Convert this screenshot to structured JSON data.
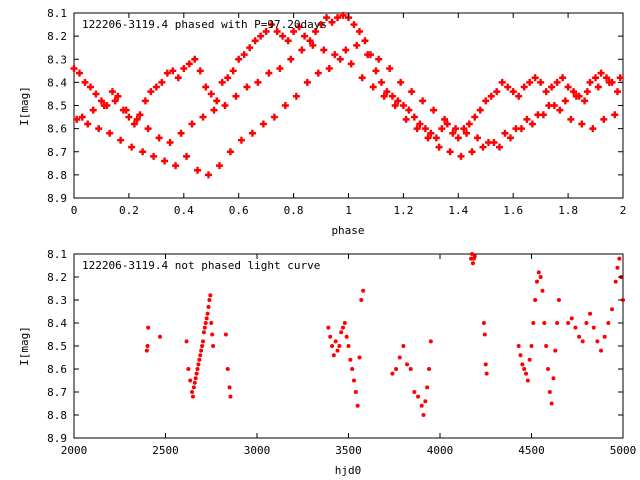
{
  "colors": {
    "points": "#ff0000",
    "axes": "#000000",
    "background": "#ffffff"
  },
  "chart_data": [
    {
      "type": "scatter",
      "title": "122206-3119.4 phased with P=97.20days",
      "xlabel": "phase",
      "ylabel": "I[mag]",
      "xlim": [
        0,
        2
      ],
      "ylim": [
        8.9,
        8.1
      ],
      "y_inverted": true,
      "grid": false,
      "legend": "none",
      "x_ticks": [
        "0",
        "0.2",
        "0.4",
        "0.6",
        "0.8",
        "1",
        "1.2",
        "1.4",
        "1.6",
        "1.8",
        "2"
      ],
      "y_ticks": [
        "8.1",
        "8.2",
        "8.3",
        "8.4",
        "8.5",
        "8.6",
        "8.7",
        "8.8",
        "8.9"
      ],
      "series": [
        {
          "marker": "star",
          "x": [
            0.0,
            0.02,
            0.04,
            0.06,
            0.08,
            0.1,
            0.12,
            0.14,
            0.16,
            0.18,
            0.2,
            0.22,
            0.24,
            0.26,
            0.28,
            0.3,
            0.32,
            0.34,
            0.36,
            0.38,
            0.4,
            0.42,
            0.44,
            0.46,
            0.48,
            0.5,
            0.52,
            0.54,
            0.56,
            0.58,
            0.6,
            0.62,
            0.64,
            0.66,
            0.68,
            0.7,
            0.72,
            0.74,
            0.76,
            0.78,
            0.8,
            0.82,
            0.84,
            0.86,
            0.88,
            0.9,
            0.92,
            0.94,
            0.96,
            0.98,
            1.0,
            1.02,
            1.04,
            1.06,
            1.08,
            1.1,
            1.12,
            1.14,
            1.16,
            1.18,
            1.2,
            1.22,
            1.24,
            1.26,
            1.28,
            1.3,
            1.32,
            1.34,
            1.36,
            1.38,
            1.4,
            1.42,
            1.44,
            1.46,
            1.48,
            1.5,
            1.52,
            1.54,
            1.56,
            1.58,
            1.6,
            1.62,
            1.64,
            1.66,
            1.68,
            1.7,
            1.72,
            1.74,
            1.76,
            1.78,
            1.8,
            1.82,
            1.84,
            1.86,
            1.88,
            1.9,
            1.92,
            1.94,
            1.96,
            1.98,
            0.01,
            0.05,
            0.09,
            0.13,
            0.17,
            0.21,
            0.25,
            0.29,
            0.33,
            0.37,
            0.41,
            0.45,
            0.49,
            0.53,
            0.57,
            0.61,
            0.65,
            0.69,
            0.73,
            0.77,
            0.81,
            0.85,
            0.89,
            0.93,
            0.97,
            1.01,
            1.05,
            1.09,
            1.13,
            1.17,
            1.21,
            1.25,
            1.29,
            1.33,
            1.37,
            1.41,
            1.45,
            1.49,
            1.53,
            1.57,
            1.61,
            1.65,
            1.69,
            1.73,
            1.77,
            1.81,
            1.85,
            1.89,
            1.93,
            1.97,
            0.03,
            0.07,
            0.11,
            0.15,
            0.19,
            0.23,
            0.27,
            0.31,
            0.35,
            0.39,
            0.43,
            0.47,
            0.51,
            0.55,
            0.59,
            0.63,
            0.67,
            0.71,
            0.75,
            0.79,
            0.83,
            0.87,
            0.91,
            0.95,
            0.99,
            1.03,
            1.07,
            1.11,
            1.15,
            1.19,
            1.23,
            1.27,
            1.31,
            1.35,
            1.39,
            1.43,
            1.47,
            1.51,
            1.55,
            1.59,
            1.63,
            1.67,
            1.71,
            1.75,
            1.79,
            1.83,
            1.87,
            1.91,
            1.95,
            1.99
          ],
          "y": [
            8.34,
            8.36,
            8.4,
            8.42,
            8.45,
            8.48,
            8.5,
            8.44,
            8.46,
            8.52,
            8.55,
            8.58,
            8.54,
            8.48,
            8.44,
            8.42,
            8.4,
            8.36,
            8.35,
            8.38,
            8.34,
            8.32,
            8.3,
            8.35,
            8.42,
            8.45,
            8.48,
            8.4,
            8.38,
            8.35,
            8.3,
            8.28,
            8.25,
            8.22,
            8.2,
            8.18,
            8.15,
            8.18,
            8.2,
            8.22,
            8.18,
            8.16,
            8.2,
            8.22,
            8.18,
            8.15,
            8.12,
            8.14,
            8.12,
            8.11,
            8.12,
            8.15,
            8.18,
            8.22,
            8.28,
            8.35,
            8.4,
            8.44,
            8.46,
            8.48,
            8.5,
            8.52,
            8.55,
            8.58,
            8.6,
            8.62,
            8.64,
            8.6,
            8.58,
            8.62,
            8.64,
            8.6,
            8.58,
            8.55,
            8.52,
            8.48,
            8.46,
            8.44,
            8.4,
            8.42,
            8.44,
            8.46,
            8.42,
            8.4,
            8.38,
            8.4,
            8.44,
            8.42,
            8.4,
            8.38,
            8.42,
            8.44,
            8.46,
            8.48,
            8.4,
            8.38,
            8.36,
            8.38,
            8.4,
            8.44,
            8.56,
            8.58,
            8.6,
            8.62,
            8.65,
            8.68,
            8.7,
            8.72,
            8.74,
            8.76,
            8.72,
            8.78,
            8.8,
            8.76,
            8.7,
            8.65,
            8.62,
            8.58,
            8.55,
            8.5,
            8.46,
            8.4,
            8.36,
            8.34,
            8.3,
            8.32,
            8.38,
            8.42,
            8.46,
            8.5,
            8.56,
            8.6,
            8.64,
            8.68,
            8.7,
            8.72,
            8.7,
            8.68,
            8.66,
            8.62,
            8.6,
            8.56,
            8.54,
            8.5,
            8.52,
            8.56,
            8.58,
            8.6,
            8.56,
            8.54,
            8.55,
            8.52,
            8.5,
            8.48,
            8.52,
            8.56,
            8.6,
            8.64,
            8.66,
            8.62,
            8.58,
            8.55,
            8.52,
            8.5,
            8.46,
            8.42,
            8.4,
            8.36,
            8.34,
            8.3,
            8.26,
            8.24,
            8.26,
            8.28,
            8.26,
            8.24,
            8.28,
            8.3,
            8.34,
            8.4,
            8.44,
            8.48,
            8.52,
            8.56,
            8.6,
            8.62,
            8.64,
            8.66,
            8.68,
            8.64,
            8.6,
            8.58,
            8.54,
            8.5,
            8.48,
            8.46,
            8.44,
            8.42,
            8.4,
            8.38
          ]
        }
      ]
    },
    {
      "type": "scatter",
      "title": "122206-3119.4 not phased light curve",
      "xlabel": "hjd0",
      "ylabel": "I[mag]",
      "xlim": [
        2000,
        5000
      ],
      "ylim": [
        8.9,
        8.1
      ],
      "y_inverted": true,
      "grid": false,
      "legend": "none",
      "x_ticks": [
        "2000",
        "2500",
        "3000",
        "3500",
        "4000",
        "4500",
        "5000"
      ],
      "y_ticks": [
        "8.1",
        "8.2",
        "8.3",
        "8.4",
        "8.5",
        "8.6",
        "8.7",
        "8.8",
        "8.9"
      ],
      "series": [
        {
          "marker": "dot",
          "x": [
            2398,
            2402,
            2405,
            2470,
            2615,
            2625,
            2635,
            2645,
            2650,
            2655,
            2660,
            2665,
            2670,
            2675,
            2680,
            2685,
            2690,
            2695,
            2700,
            2705,
            2710,
            2715,
            2720,
            2725,
            2730,
            2735,
            2740,
            2745,
            2750,
            2755,
            2760,
            2830,
            2840,
            2850,
            2855,
            3390,
            3400,
            3410,
            3420,
            3430,
            3440,
            3450,
            3460,
            3470,
            3480,
            3490,
            3500,
            3510,
            3520,
            3530,
            3540,
            3550,
            3560,
            3570,
            3580,
            3740,
            3760,
            3780,
            3800,
            3820,
            3840,
            3860,
            3880,
            3900,
            3910,
            3920,
            3930,
            3940,
            3950,
            4170,
            4175,
            4180,
            4185,
            4190,
            4240,
            4245,
            4250,
            4255,
            4430,
            4440,
            4450,
            4460,
            4470,
            4480,
            4490,
            4500,
            4510,
            4520,
            4530,
            4540,
            4550,
            4560,
            4570,
            4580,
            4590,
            4600,
            4610,
            4620,
            4630,
            4640,
            4650,
            4700,
            4720,
            4740,
            4760,
            4780,
            4800,
            4820,
            4840,
            4860,
            4880,
            4900,
            4920,
            4940,
            4960,
            4970,
            4980,
            4990,
            5000
          ],
          "y": [
            8.52,
            8.5,
            8.42,
            8.46,
            8.48,
            8.6,
            8.65,
            8.7,
            8.72,
            8.68,
            8.66,
            8.64,
            8.62,
            8.6,
            8.58,
            8.56,
            8.54,
            8.52,
            8.5,
            8.48,
            8.44,
            8.42,
            8.4,
            8.38,
            8.36,
            8.33,
            8.3,
            8.28,
            8.4,
            8.45,
            8.5,
            8.45,
            8.6,
            8.68,
            8.72,
            8.42,
            8.46,
            8.5,
            8.54,
            8.48,
            8.52,
            8.5,
            8.44,
            8.42,
            8.4,
            8.46,
            8.5,
            8.56,
            8.6,
            8.65,
            8.7,
            8.76,
            8.55,
            8.3,
            8.26,
            8.62,
            8.6,
            8.55,
            8.5,
            8.58,
            8.6,
            8.7,
            8.72,
            8.76,
            8.8,
            8.74,
            8.68,
            8.6,
            8.48,
            8.12,
            8.1,
            8.14,
            8.12,
            8.11,
            8.4,
            8.45,
            8.58,
            8.62,
            8.5,
            8.54,
            8.58,
            8.6,
            8.62,
            8.65,
            8.56,
            8.5,
            8.4,
            8.3,
            8.22,
            8.18,
            8.2,
            8.26,
            8.4,
            8.5,
            8.6,
            8.7,
            8.75,
            8.64,
            8.52,
            8.4,
            8.3,
            8.4,
            8.38,
            8.42,
            8.46,
            8.48,
            8.4,
            8.36,
            8.42,
            8.48,
            8.52,
            8.46,
            8.4,
            8.34,
            8.22,
            8.16,
            8.12,
            8.2,
            8.3
          ]
        }
      ]
    }
  ]
}
